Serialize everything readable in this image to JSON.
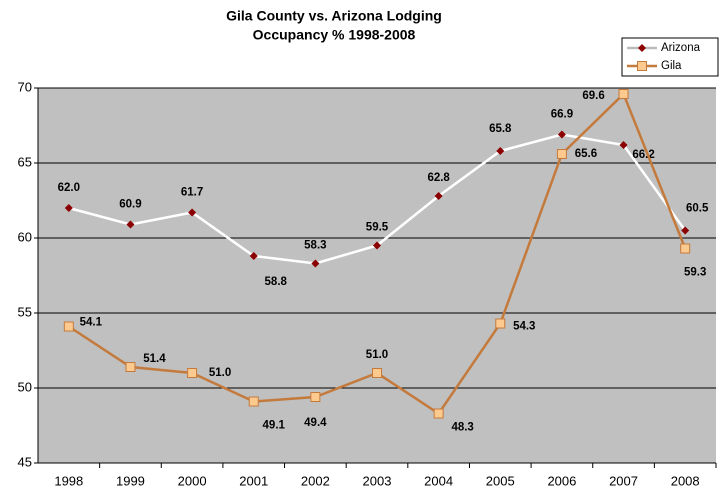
{
  "chart_data": {
    "type": "line",
    "title": "Gila County vs. Arizona Lodging",
    "subtitle": "Occupancy % 1998-2008",
    "categories": [
      "1998",
      "1999",
      "2000",
      "2001",
      "2002",
      "2003",
      "2004",
      "2005",
      "2006",
      "2007",
      "2008"
    ],
    "series": [
      {
        "name": "Arizona",
        "color": "#ffffff",
        "marker_color": "#8b0000",
        "values": [
          62.0,
          60.9,
          61.7,
          58.8,
          58.3,
          59.5,
          62.8,
          65.8,
          66.9,
          66.2,
          60.5
        ],
        "value_labels": [
          "62.0",
          "60.9",
          "61.7",
          "58.8",
          "58.3",
          "59.5",
          "62.8",
          "65.8",
          "66.9",
          "66.2",
          "60.5"
        ]
      },
      {
        "name": "Gila",
        "color": "#c47a3c",
        "marker_color": "#fcc98f",
        "values": [
          54.1,
          51.4,
          51.0,
          49.1,
          49.4,
          51.0,
          48.3,
          54.3,
          65.6,
          69.6,
          59.3
        ],
        "value_labels": [
          "54.1",
          "51.4",
          "51.0",
          "49.1",
          "49.4",
          "51.0",
          "48.3",
          "54.3",
          "65.6",
          "69.6",
          "59.3"
        ]
      }
    ],
    "ylim": [
      45,
      70
    ],
    "yticks": [
      45,
      50,
      55,
      60,
      65,
      70
    ],
    "grid": true,
    "legend": "top-right"
  }
}
